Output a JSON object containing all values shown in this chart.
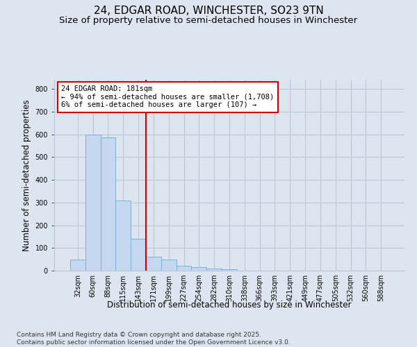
{
  "title": "24, EDGAR ROAD, WINCHESTER, SO23 9TN",
  "subtitle": "Size of property relative to semi-detached houses in Winchester",
  "xlabel": "Distribution of semi-detached houses by size in Winchester",
  "ylabel": "Number of semi-detached properties",
  "categories": [
    "32sqm",
    "60sqm",
    "88sqm",
    "115sqm",
    "143sqm",
    "171sqm",
    "199sqm",
    "227sqm",
    "254sqm",
    "282sqm",
    "310sqm",
    "338sqm",
    "366sqm",
    "393sqm",
    "421sqm",
    "449sqm",
    "477sqm",
    "505sqm",
    "532sqm",
    "560sqm",
    "588sqm"
  ],
  "values": [
    50,
    600,
    585,
    310,
    140,
    60,
    48,
    22,
    15,
    8,
    6,
    0,
    0,
    0,
    0,
    0,
    0,
    0,
    0,
    0,
    0
  ],
  "bar_color": "#c5d8f0",
  "bar_edge_color": "#7aafd4",
  "vline_index": 5,
  "vline_color": "#cc0000",
  "annotation_title": "24 EDGAR ROAD: 181sqm",
  "annotation_line1": "← 94% of semi-detached houses are smaller (1,708)",
  "annotation_line2": "6% of semi-detached houses are larger (107) →",
  "annotation_box_edgecolor": "#cc0000",
  "ylim": [
    0,
    840
  ],
  "yticks": [
    0,
    100,
    200,
    300,
    400,
    500,
    600,
    700,
    800
  ],
  "bg_color": "#dde6f0",
  "grid_color": "#b8c8d8",
  "footer_line1": "Contains HM Land Registry data © Crown copyright and database right 2025.",
  "footer_line2": "Contains public sector information licensed under the Open Government Licence v3.0.",
  "title_fontsize": 11,
  "subtitle_fontsize": 9.5,
  "axis_label_fontsize": 8.5,
  "tick_fontsize": 7,
  "footer_fontsize": 6.5,
  "annotation_fontsize": 7.5
}
